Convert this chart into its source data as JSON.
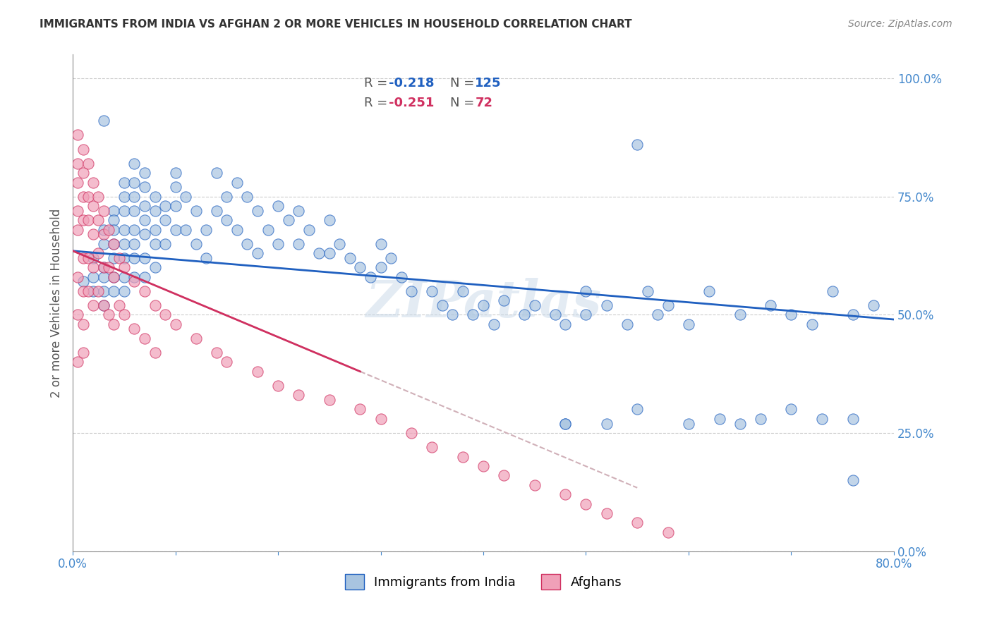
{
  "title": "IMMIGRANTS FROM INDIA VS AFGHAN 2 OR MORE VEHICLES IN HOUSEHOLD CORRELATION CHART",
  "source": "Source: ZipAtlas.com",
  "xlabel": "",
  "ylabel": "2 or more Vehicles in Household",
  "legend_india": "Immigrants from India",
  "legend_afghan": "Afghans",
  "R_india": -0.218,
  "N_india": 125,
  "R_afghan": -0.251,
  "N_afghan": 72,
  "color_india": "#a8c4e0",
  "color_india_line": "#2060c0",
  "color_afghan": "#f0a0b8",
  "color_afghan_line": "#d03060",
  "color_afghan_trendline_dashed": "#d0b0b8",
  "xmin": 0.0,
  "xmax": 0.8,
  "ymin": 0.0,
  "ymax": 1.05,
  "yticks": [
    0.0,
    0.25,
    0.5,
    0.75,
    1.0
  ],
  "ytick_labels": [
    "0.0%",
    "25.0%",
    "50.0%",
    "75.0%",
    "100.0%"
  ],
  "xticks": [
    0.0,
    0.1,
    0.2,
    0.3,
    0.4,
    0.5,
    0.6,
    0.7,
    0.8
  ],
  "xtick_labels": [
    "0.0%",
    "",
    "",
    "",
    "",
    "",
    "",
    "",
    "80.0%"
  ],
  "india_x": [
    0.01,
    0.02,
    0.02,
    0.02,
    0.03,
    0.03,
    0.03,
    0.03,
    0.03,
    0.03,
    0.04,
    0.04,
    0.04,
    0.04,
    0.04,
    0.04,
    0.04,
    0.05,
    0.05,
    0.05,
    0.05,
    0.05,
    0.05,
    0.05,
    0.05,
    0.06,
    0.06,
    0.06,
    0.06,
    0.06,
    0.06,
    0.06,
    0.06,
    0.07,
    0.07,
    0.07,
    0.07,
    0.07,
    0.07,
    0.07,
    0.08,
    0.08,
    0.08,
    0.08,
    0.08,
    0.09,
    0.09,
    0.09,
    0.1,
    0.1,
    0.1,
    0.1,
    0.11,
    0.11,
    0.12,
    0.12,
    0.13,
    0.13,
    0.14,
    0.14,
    0.15,
    0.15,
    0.16,
    0.16,
    0.17,
    0.17,
    0.18,
    0.18,
    0.19,
    0.2,
    0.2,
    0.21,
    0.22,
    0.22,
    0.23,
    0.24,
    0.25,
    0.25,
    0.26,
    0.27,
    0.28,
    0.29,
    0.3,
    0.3,
    0.31,
    0.32,
    0.33,
    0.35,
    0.36,
    0.37,
    0.38,
    0.39,
    0.4,
    0.41,
    0.42,
    0.44,
    0.45,
    0.47,
    0.48,
    0.5,
    0.5,
    0.52,
    0.54,
    0.56,
    0.57,
    0.58,
    0.6,
    0.62,
    0.65,
    0.68,
    0.7,
    0.72,
    0.74,
    0.76,
    0.78,
    0.48,
    0.52,
    0.55,
    0.6,
    0.63,
    0.65,
    0.67,
    0.7,
    0.73,
    0.76
  ],
  "india_y": [
    0.57,
    0.62,
    0.58,
    0.55,
    0.65,
    0.68,
    0.6,
    0.58,
    0.55,
    0.52,
    0.72,
    0.7,
    0.68,
    0.65,
    0.62,
    0.58,
    0.55,
    0.78,
    0.75,
    0.72,
    0.68,
    0.65,
    0.62,
    0.58,
    0.55,
    0.82,
    0.78,
    0.75,
    0.72,
    0.68,
    0.65,
    0.62,
    0.58,
    0.8,
    0.77,
    0.73,
    0.7,
    0.67,
    0.62,
    0.58,
    0.75,
    0.72,
    0.68,
    0.65,
    0.6,
    0.73,
    0.7,
    0.65,
    0.8,
    0.77,
    0.73,
    0.68,
    0.75,
    0.68,
    0.72,
    0.65,
    0.68,
    0.62,
    0.8,
    0.72,
    0.75,
    0.7,
    0.78,
    0.68,
    0.75,
    0.65,
    0.72,
    0.63,
    0.68,
    0.73,
    0.65,
    0.7,
    0.72,
    0.65,
    0.68,
    0.63,
    0.7,
    0.63,
    0.65,
    0.62,
    0.6,
    0.58,
    0.65,
    0.6,
    0.62,
    0.58,
    0.55,
    0.55,
    0.52,
    0.5,
    0.55,
    0.5,
    0.52,
    0.48,
    0.53,
    0.5,
    0.52,
    0.5,
    0.48,
    0.55,
    0.5,
    0.52,
    0.48,
    0.55,
    0.5,
    0.52,
    0.48,
    0.55,
    0.5,
    0.52,
    0.5,
    0.48,
    0.55,
    0.5,
    0.52,
    0.27,
    0.27,
    0.3,
    0.27,
    0.28,
    0.27,
    0.28,
    0.3,
    0.28,
    0.28
  ],
  "india_special": [
    [
      0.03,
      0.91
    ],
    [
      0.55,
      0.86
    ],
    [
      0.48,
      0.27
    ],
    [
      0.76,
      0.15
    ]
  ],
  "afghan_x": [
    0.005,
    0.005,
    0.005,
    0.005,
    0.005,
    0.005,
    0.005,
    0.005,
    0.01,
    0.01,
    0.01,
    0.01,
    0.01,
    0.01,
    0.01,
    0.01,
    0.015,
    0.015,
    0.015,
    0.015,
    0.015,
    0.02,
    0.02,
    0.02,
    0.02,
    0.02,
    0.025,
    0.025,
    0.025,
    0.025,
    0.03,
    0.03,
    0.03,
    0.03,
    0.035,
    0.035,
    0.035,
    0.04,
    0.04,
    0.04,
    0.045,
    0.045,
    0.05,
    0.05,
    0.06,
    0.06,
    0.07,
    0.07,
    0.08,
    0.08,
    0.09,
    0.1,
    0.12,
    0.14,
    0.15,
    0.18,
    0.2,
    0.22,
    0.25,
    0.28,
    0.3,
    0.33,
    0.35,
    0.38,
    0.4,
    0.42,
    0.45,
    0.48,
    0.5,
    0.52,
    0.55,
    0.58
  ],
  "afghan_y": [
    0.88,
    0.82,
    0.78,
    0.72,
    0.68,
    0.58,
    0.5,
    0.4,
    0.85,
    0.8,
    0.75,
    0.7,
    0.62,
    0.55,
    0.48,
    0.42,
    0.82,
    0.75,
    0.7,
    0.62,
    0.55,
    0.78,
    0.73,
    0.67,
    0.6,
    0.52,
    0.75,
    0.7,
    0.63,
    0.55,
    0.72,
    0.67,
    0.6,
    0.52,
    0.68,
    0.6,
    0.5,
    0.65,
    0.58,
    0.48,
    0.62,
    0.52,
    0.6,
    0.5,
    0.57,
    0.47,
    0.55,
    0.45,
    0.52,
    0.42,
    0.5,
    0.48,
    0.45,
    0.42,
    0.4,
    0.38,
    0.35,
    0.33,
    0.32,
    0.3,
    0.28,
    0.25,
    0.22,
    0.2,
    0.18,
    0.16,
    0.14,
    0.12,
    0.1,
    0.08,
    0.06,
    0.04
  ],
  "watermark": "ZIPatlas",
  "watermark_color": "#c8d8e8",
  "background_color": "#ffffff",
  "grid_color": "#cccccc",
  "tick_label_color": "#4488cc",
  "title_color": "#333333",
  "axis_color": "#888888"
}
